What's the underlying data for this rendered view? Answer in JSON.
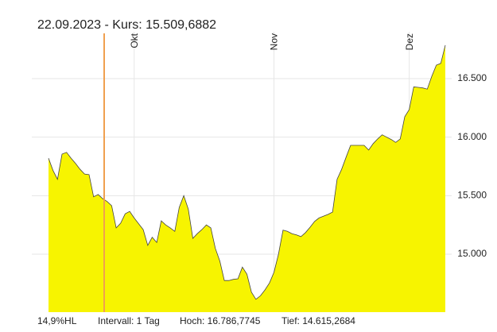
{
  "chart_data": {
    "type": "area",
    "title": "22.09.2023  -  Kurs: 15.509,6882",
    "categories": [
      null,
      null,
      null,
      null,
      null,
      null,
      null,
      null,
      null,
      null,
      null,
      null,
      null,
      null,
      null,
      null,
      null,
      null,
      null,
      "Okt",
      null,
      null,
      null,
      null,
      null,
      null,
      null,
      null,
      null,
      null,
      null,
      null,
      null,
      null,
      null,
      null,
      null,
      null,
      null,
      null,
      null,
      null,
      null,
      null,
      null,
      null,
      null,
      null,
      null,
      null,
      "Nov",
      null,
      null,
      null,
      null,
      null,
      null,
      null,
      null,
      null,
      null,
      null,
      null,
      null,
      null,
      null,
      null,
      null,
      null,
      null,
      null,
      null,
      null,
      null,
      null,
      null,
      null,
      null,
      null,
      null,
      "Dez",
      null,
      null,
      null,
      null,
      null,
      null,
      null,
      null
    ],
    "values": [
      15820,
      15715,
      15640,
      15855,
      15870,
      15820,
      15775,
      15725,
      15685,
      15680,
      15490,
      15510,
      15475,
      15450,
      15415,
      15225,
      15265,
      15345,
      15365,
      15310,
      15260,
      15210,
      15075,
      15145,
      15100,
      15285,
      15250,
      15225,
      15195,
      15400,
      15500,
      15385,
      15135,
      15175,
      15210,
      15250,
      15225,
      15050,
      14940,
      14775,
      14775,
      14785,
      14790,
      14890,
      14830,
      14675,
      14615,
      14645,
      14695,
      14755,
      14845,
      15000,
      15205,
      15195,
      15175,
      15165,
      15150,
      15185,
      15230,
      15280,
      15310,
      15325,
      15340,
      15360,
      15640,
      15725,
      15830,
      15930,
      15930,
      15930,
      15930,
      15890,
      15945,
      15985,
      16020,
      16000,
      15980,
      15955,
      15985,
      16175,
      16235,
      16430,
      16425,
      16420,
      16410,
      16520,
      16615,
      16630,
      16785
    ],
    "color": "#f7f400",
    "line_color": "#444444",
    "ylim": [
      14505,
      16900
    ],
    "yticks": [
      {
        "value": 15000,
        "label": "15.000"
      },
      {
        "value": 15500,
        "label": "15.500"
      },
      {
        "value": 16000,
        "label": "16.000"
      },
      {
        "value": 16500,
        "label": "16.500"
      }
    ],
    "grid": true,
    "footer": [
      "14,9%HL",
      "Intervall: 1 Tag",
      "Hoch: 16.786,7745",
      "Tief: 14.615,2684"
    ]
  }
}
